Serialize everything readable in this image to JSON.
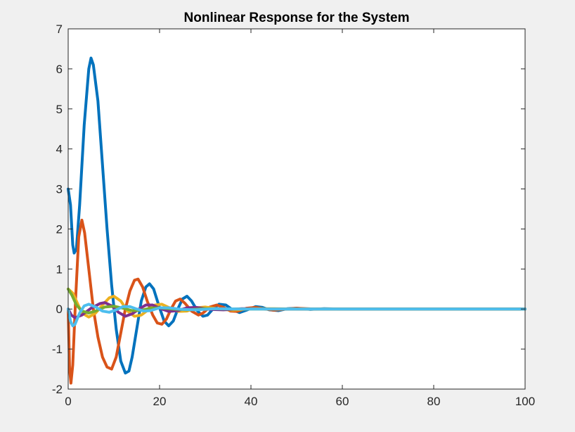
{
  "chart_data": {
    "type": "line",
    "title": "Nonlinear Response for the System",
    "xlabel": "",
    "ylabel": "",
    "xlim": [
      0,
      100
    ],
    "ylim": [
      -2,
      7
    ],
    "x_ticks": [
      0,
      20,
      40,
      60,
      80,
      100
    ],
    "y_ticks": [
      -2,
      -1,
      0,
      1,
      2,
      3,
      4,
      5,
      6,
      7
    ],
    "x_tick_labels": [
      "0",
      "20",
      "40",
      "60",
      "80",
      "100"
    ],
    "y_tick_labels": [
      "-2",
      "-1",
      "0",
      "1",
      "2",
      "3",
      "4",
      "5",
      "6",
      "7"
    ],
    "grid": false,
    "legend": "none",
    "series": [
      {
        "color": "#0072bd",
        "points": [
          [
            0,
            3.0
          ],
          [
            0.5,
            2.6
          ],
          [
            1.0,
            1.6
          ],
          [
            1.3,
            1.4
          ],
          [
            1.8,
            1.5
          ],
          [
            2.5,
            2.6
          ],
          [
            3.5,
            4.6
          ],
          [
            4.5,
            6.0
          ],
          [
            5.0,
            6.27
          ],
          [
            5.5,
            6.1
          ],
          [
            6.5,
            5.2
          ],
          [
            7.5,
            3.6
          ],
          [
            8.5,
            2.0
          ],
          [
            9.5,
            0.6
          ],
          [
            10.5,
            -0.5
          ],
          [
            11.5,
            -1.3
          ],
          [
            12.5,
            -1.6
          ],
          [
            13.3,
            -1.55
          ],
          [
            14.0,
            -1.2
          ],
          [
            15.0,
            -0.5
          ],
          [
            16.0,
            0.2
          ],
          [
            17.0,
            0.55
          ],
          [
            17.8,
            0.63
          ],
          [
            18.7,
            0.5
          ],
          [
            19.8,
            0.1
          ],
          [
            21.0,
            -0.3
          ],
          [
            22.0,
            -0.42
          ],
          [
            23.0,
            -0.3
          ],
          [
            24.0,
            0.0
          ],
          [
            25.0,
            0.25
          ],
          [
            26.0,
            0.32
          ],
          [
            27.0,
            0.2
          ],
          [
            28.3,
            -0.05
          ],
          [
            29.5,
            -0.18
          ],
          [
            30.5,
            -0.15
          ],
          [
            31.5,
            -0.02
          ],
          [
            33.0,
            0.12
          ],
          [
            34.5,
            0.1
          ],
          [
            36.0,
            -0.02
          ],
          [
            37.5,
            -0.09
          ],
          [
            39.0,
            -0.03
          ],
          [
            41.0,
            0.06
          ],
          [
            42.5,
            0.04
          ],
          [
            44.0,
            -0.02
          ],
          [
            46.0,
            -0.04
          ],
          [
            48.0,
            0.01
          ],
          [
            50.0,
            0.02
          ],
          [
            53.0,
            -0.01
          ],
          [
            56.0,
            0.01
          ],
          [
            60.0,
            0.0
          ],
          [
            100,
            0.0
          ]
        ]
      },
      {
        "color": "#d95319",
        "points": [
          [
            0,
            0.0
          ],
          [
            0.3,
            -1.5
          ],
          [
            0.6,
            -1.85
          ],
          [
            1.0,
            -1.4
          ],
          [
            1.6,
            0.2
          ],
          [
            2.3,
            1.8
          ],
          [
            3.0,
            2.22
          ],
          [
            3.6,
            1.9
          ],
          [
            4.5,
            1.0
          ],
          [
            5.5,
            0.0
          ],
          [
            6.5,
            -0.7
          ],
          [
            7.5,
            -1.2
          ],
          [
            8.5,
            -1.45
          ],
          [
            9.5,
            -1.5
          ],
          [
            10.5,
            -1.2
          ],
          [
            11.5,
            -0.6
          ],
          [
            12.5,
            0.0
          ],
          [
            13.5,
            0.45
          ],
          [
            14.5,
            0.72
          ],
          [
            15.3,
            0.75
          ],
          [
            16.3,
            0.55
          ],
          [
            17.3,
            0.2
          ],
          [
            18.5,
            -0.15
          ],
          [
            19.5,
            -0.35
          ],
          [
            20.5,
            -0.38
          ],
          [
            21.5,
            -0.25
          ],
          [
            22.5,
            0.0
          ],
          [
            23.5,
            0.2
          ],
          [
            24.5,
            0.25
          ],
          [
            25.5,
            0.15
          ],
          [
            27.0,
            -0.05
          ],
          [
            28.5,
            -0.15
          ],
          [
            29.5,
            -0.1
          ],
          [
            31.0,
            0.05
          ],
          [
            32.5,
            0.1
          ],
          [
            34.0,
            0.04
          ],
          [
            35.5,
            -0.05
          ],
          [
            37.0,
            -0.06
          ],
          [
            39.0,
            0.02
          ],
          [
            41.0,
            0.04
          ],
          [
            43.0,
            0.0
          ],
          [
            45.0,
            -0.03
          ],
          [
            47.0,
            -0.01
          ],
          [
            50.0,
            0.02
          ],
          [
            54.0,
            0.0
          ],
          [
            60.0,
            0.0
          ],
          [
            100,
            0.0
          ]
        ]
      },
      {
        "color": "#edb120",
        "points": [
          [
            0,
            0.5
          ],
          [
            1.0,
            0.4
          ],
          [
            2.0,
            0.15
          ],
          [
            3.0,
            -0.1
          ],
          [
            4.5,
            -0.2
          ],
          [
            6.0,
            -0.1
          ],
          [
            7.5,
            0.1
          ],
          [
            9.0,
            0.28
          ],
          [
            10.0,
            0.32
          ],
          [
            11.5,
            0.2
          ],
          [
            13.0,
            -0.05
          ],
          [
            14.5,
            -0.18
          ],
          [
            16.0,
            -0.15
          ],
          [
            17.5,
            -0.02
          ],
          [
            19.0,
            0.1
          ],
          [
            20.5,
            0.12
          ],
          [
            22.0,
            0.04
          ],
          [
            24.0,
            -0.06
          ],
          [
            26.0,
            -0.05
          ],
          [
            28.0,
            0.03
          ],
          [
            30.0,
            0.05
          ],
          [
            33.0,
            0.0
          ],
          [
            36.0,
            -0.03
          ],
          [
            40.0,
            0.01
          ],
          [
            45.0,
            0.01
          ],
          [
            50.0,
            0.0
          ],
          [
            100,
            0.0
          ]
        ]
      },
      {
        "color": "#7e2f8e",
        "points": [
          [
            0,
            0.0
          ],
          [
            0.7,
            -0.15
          ],
          [
            1.5,
            -0.22
          ],
          [
            3.0,
            -0.15
          ],
          [
            5.0,
            0.02
          ],
          [
            7.0,
            0.14
          ],
          [
            8.0,
            0.16
          ],
          [
            9.5,
            0.08
          ],
          [
            11.0,
            -0.08
          ],
          [
            12.5,
            -0.18
          ],
          [
            14.0,
            -0.12
          ],
          [
            15.5,
            0.0
          ],
          [
            17.0,
            0.1
          ],
          [
            18.5,
            0.1
          ],
          [
            20.0,
            0.02
          ],
          [
            22.0,
            -0.06
          ],
          [
            24.0,
            -0.04
          ],
          [
            26.0,
            0.03
          ],
          [
            28.0,
            0.04
          ],
          [
            31.0,
            -0.01
          ],
          [
            34.0,
            -0.02
          ],
          [
            38.0,
            0.01
          ],
          [
            45.0,
            0.0
          ],
          [
            100,
            0.0
          ]
        ]
      },
      {
        "color": "#77ac30",
        "points": [
          [
            0,
            0.5
          ],
          [
            0.8,
            0.35
          ],
          [
            1.8,
            0.1
          ],
          [
            3.0,
            -0.05
          ],
          [
            4.5,
            -0.1
          ],
          [
            6.0,
            -0.05
          ],
          [
            8.0,
            0.05
          ],
          [
            10.0,
            0.07
          ],
          [
            12.0,
            0.02
          ],
          [
            14.0,
            -0.04
          ],
          [
            16.0,
            -0.03
          ],
          [
            18.0,
            0.02
          ],
          [
            20.0,
            0.03
          ],
          [
            23.0,
            0.0
          ],
          [
            26.0,
            -0.02
          ],
          [
            30.0,
            0.01
          ],
          [
            35.0,
            0.0
          ],
          [
            100,
            0.0
          ]
        ]
      },
      {
        "color": "#4dbeee",
        "points": [
          [
            0,
            0.0
          ],
          [
            0.5,
            -0.3
          ],
          [
            1.0,
            -0.42
          ],
          [
            1.5,
            -0.38
          ],
          [
            2.5,
            -0.1
          ],
          [
            3.5,
            0.08
          ],
          [
            4.5,
            0.12
          ],
          [
            6.0,
            0.05
          ],
          [
            7.5,
            -0.05
          ],
          [
            9.0,
            -0.08
          ],
          [
            10.5,
            -0.02
          ],
          [
            12.0,
            0.06
          ],
          [
            13.5,
            0.06
          ],
          [
            15.0,
            0.0
          ],
          [
            16.5,
            -0.05
          ],
          [
            18.0,
            -0.04
          ],
          [
            20.0,
            0.03
          ],
          [
            22.0,
            0.03
          ],
          [
            25.0,
            -0.01
          ],
          [
            28.0,
            -0.02
          ],
          [
            32.0,
            0.01
          ],
          [
            38.0,
            0.0
          ],
          [
            100,
            0.0
          ]
        ]
      }
    ]
  }
}
